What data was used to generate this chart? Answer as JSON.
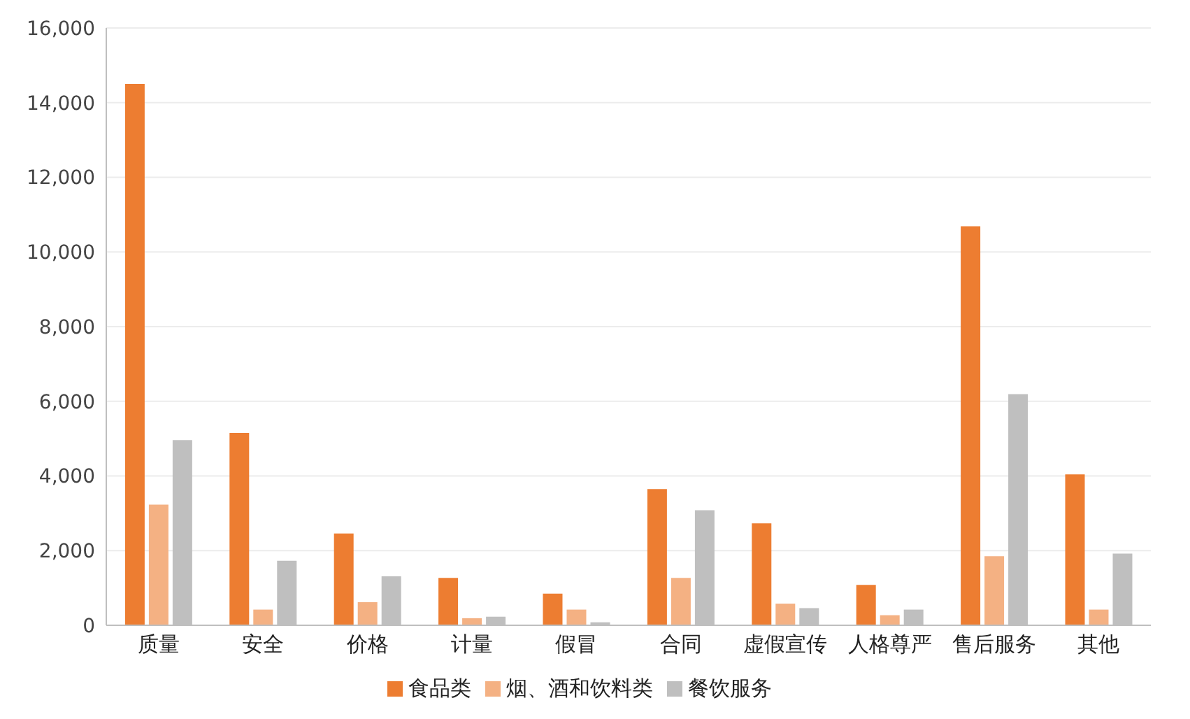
{
  "chart_data": {
    "type": "bar",
    "categories": [
      "质量",
      "安全",
      "价格",
      "计量",
      "假冒",
      "合同",
      "虚假宣传",
      "人格尊严",
      "售后服务",
      "其他"
    ],
    "series": [
      {
        "name": "食品类",
        "color": "#ed7d31",
        "values": [
          14500,
          5150,
          2460,
          1270,
          850,
          3650,
          2730,
          1080,
          10690,
          4040
        ]
      },
      {
        "name": "烟、酒和饮料类",
        "color": "#f4b183",
        "values": [
          3230,
          420,
          620,
          190,
          420,
          1270,
          580,
          270,
          1850,
          420
        ]
      },
      {
        "name": "餐饮服务",
        "color": "#bfbfbf",
        "values": [
          4960,
          1730,
          1310,
          230,
          80,
          3080,
          460,
          420,
          6190,
          1920
        ]
      }
    ],
    "ylim": [
      0,
      16000
    ],
    "yticks": [
      0,
      {
        "value": 2000,
        "label": "2,000"
      },
      {
        "value": 4000,
        "label": "4,000"
      },
      {
        "value": 6000,
        "label": "6,000"
      },
      {
        "value": 8000,
        "label": "8,000"
      },
      {
        "value": 10000,
        "label": "10,000"
      },
      {
        "value": 12000,
        "label": "12,000"
      },
      {
        "value": 14000,
        "label": "14,000"
      },
      {
        "value": 16000,
        "label": "16,000"
      }
    ],
    "grid": "y",
    "legend": "bottom"
  }
}
